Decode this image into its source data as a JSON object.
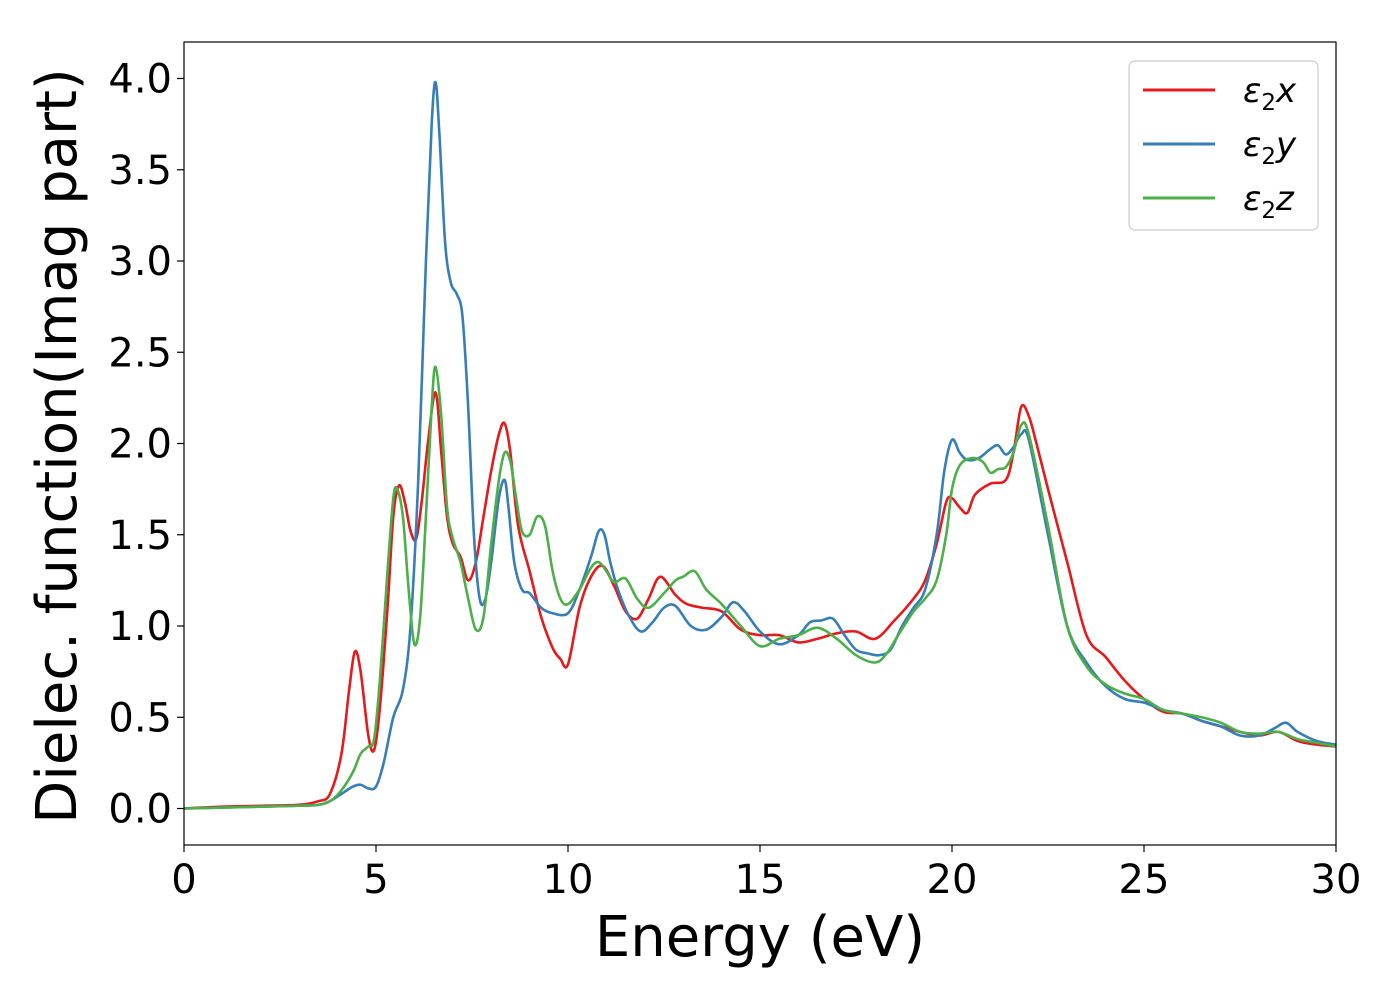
{
  "chart_data": {
    "type": "line",
    "xlabel": "Energy (eV)",
    "ylabel": "Dielec. function(Imag part)",
    "xlim": [
      0,
      30
    ],
    "ylim": [
      -0.2,
      4.2
    ],
    "xticks": [
      0,
      5,
      10,
      15,
      20,
      25,
      30
    ],
    "xtick_labels": [
      "0",
      "5",
      "10",
      "15",
      "20",
      "25",
      "30"
    ],
    "yticks": [
      0,
      0.5,
      1,
      1.5,
      2,
      2.5,
      3,
      3.5,
      4
    ],
    "ytick_labels": [
      "0.0",
      "0.5",
      "1.0",
      "1.5",
      "2.0",
      "2.5",
      "3.0",
      "3.5",
      "4.0"
    ],
    "grid": false,
    "legend_position": "top-right",
    "series": [
      {
        "name": "ε₂x",
        "legend_symbol": "ε",
        "legend_sub": "2",
        "legend_var": "x",
        "color": "#e41a1c",
        "x": [
          0,
          1,
          2,
          3,
          3.5,
          3.8,
          4.1,
          4.3,
          4.45,
          4.6,
          4.8,
          4.95,
          5.1,
          5.3,
          5.45,
          5.6,
          5.75,
          5.9,
          6.05,
          6.2,
          6.35,
          6.55,
          6.7,
          6.85,
          7.0,
          7.2,
          7.4,
          7.6,
          7.8,
          8.0,
          8.2,
          8.35,
          8.5,
          8.7,
          9.0,
          9.3,
          9.6,
          9.8,
          10.0,
          10.3,
          10.6,
          10.9,
          11.2,
          11.5,
          11.8,
          12.1,
          12.4,
          12.8,
          13.1,
          13.5,
          14.0,
          14.5,
          15.0,
          15.5,
          16.0,
          16.5,
          17.0,
          17.5,
          18.0,
          18.5,
          19.0,
          19.3,
          19.6,
          19.85,
          20.0,
          20.2,
          20.4,
          20.6,
          21.0,
          21.4,
          21.6,
          21.8,
          22.0,
          22.2,
          22.5,
          23.0,
          23.5,
          24.0,
          24.5,
          25.0,
          25.5,
          26.0,
          26.5,
          27.0,
          27.5,
          28.0,
          28.5,
          29.0,
          29.5,
          30.0
        ],
        "y": [
          0.0,
          0.01,
          0.015,
          0.02,
          0.04,
          0.08,
          0.3,
          0.65,
          0.86,
          0.75,
          0.4,
          0.32,
          0.55,
          1.1,
          1.6,
          1.77,
          1.68,
          1.52,
          1.48,
          1.7,
          2.0,
          2.28,
          1.95,
          1.6,
          1.45,
          1.38,
          1.25,
          1.35,
          1.6,
          1.85,
          2.05,
          2.11,
          1.95,
          1.55,
          1.3,
          1.05,
          0.88,
          0.82,
          0.79,
          1.1,
          1.27,
          1.33,
          1.22,
          1.08,
          1.04,
          1.15,
          1.27,
          1.17,
          1.12,
          1.1,
          1.08,
          0.98,
          0.95,
          0.95,
          0.91,
          0.93,
          0.96,
          0.97,
          0.93,
          1.03,
          1.15,
          1.25,
          1.45,
          1.68,
          1.7,
          1.65,
          1.62,
          1.72,
          1.78,
          1.8,
          1.95,
          2.2,
          2.15,
          2.0,
          1.75,
          1.35,
          0.95,
          0.83,
          0.7,
          0.6,
          0.53,
          0.52,
          0.48,
          0.45,
          0.42,
          0.4,
          0.42,
          0.37,
          0.35,
          0.34
        ]
      },
      {
        "name": "ε₂y",
        "legend_symbol": "ε",
        "legend_sub": "2",
        "legend_var": "y",
        "color": "#377eb8",
        "x": [
          0,
          1,
          2,
          3,
          3.5,
          3.8,
          4.1,
          4.4,
          4.6,
          4.8,
          5.0,
          5.2,
          5.45,
          5.7,
          5.9,
          6.1,
          6.3,
          6.45,
          6.55,
          6.65,
          6.8,
          6.95,
          7.1,
          7.25,
          7.4,
          7.55,
          7.7,
          7.85,
          8.0,
          8.2,
          8.35,
          8.45,
          8.6,
          8.8,
          9.0,
          9.3,
          9.6,
          10.0,
          10.3,
          10.6,
          10.8,
          10.95,
          11.1,
          11.3,
          11.6,
          11.9,
          12.2,
          12.5,
          12.8,
          13.2,
          13.6,
          14.0,
          14.3,
          14.6,
          15.0,
          15.5,
          16.0,
          16.3,
          16.6,
          16.9,
          17.2,
          17.5,
          17.8,
          18.1,
          18.4,
          18.7,
          19.0,
          19.3,
          19.6,
          19.8,
          20.0,
          20.2,
          20.4,
          20.7,
          21.0,
          21.2,
          21.4,
          21.6,
          21.8,
          22.0,
          22.5,
          23.0,
          23.5,
          24.0,
          24.5,
          25.0,
          25.5,
          26.0,
          26.5,
          27.0,
          27.5,
          28.0,
          28.4,
          28.7,
          29.0,
          29.5,
          30.0
        ],
        "y": [
          0.0,
          0.005,
          0.01,
          0.015,
          0.02,
          0.04,
          0.08,
          0.12,
          0.13,
          0.11,
          0.12,
          0.25,
          0.5,
          0.65,
          1.0,
          1.8,
          3.0,
          3.75,
          3.98,
          3.7,
          3.1,
          2.88,
          2.82,
          2.7,
          2.2,
          1.5,
          1.15,
          1.15,
          1.35,
          1.7,
          1.8,
          1.65,
          1.35,
          1.2,
          1.18,
          1.1,
          1.07,
          1.07,
          1.2,
          1.38,
          1.52,
          1.5,
          1.35,
          1.2,
          1.05,
          0.97,
          1.02,
          1.1,
          1.11,
          1.0,
          0.98,
          1.05,
          1.13,
          1.08,
          0.97,
          0.9,
          0.95,
          1.02,
          1.03,
          1.04,
          0.95,
          0.87,
          0.85,
          0.84,
          0.87,
          1.0,
          1.1,
          1.2,
          1.5,
          1.85,
          2.02,
          1.95,
          1.91,
          1.92,
          1.97,
          1.99,
          1.94,
          1.98,
          2.05,
          2.02,
          1.5,
          1.0,
          0.8,
          0.67,
          0.6,
          0.58,
          0.54,
          0.52,
          0.48,
          0.45,
          0.4,
          0.4,
          0.44,
          0.47,
          0.42,
          0.37,
          0.35
        ]
      },
      {
        "name": "ε₂z",
        "legend_symbol": "ε",
        "legend_sub": "2",
        "legend_var": "z",
        "color": "#4daf4a",
        "x": [
          0,
          1,
          2,
          3,
          3.5,
          3.8,
          4.1,
          4.4,
          4.6,
          4.8,
          4.95,
          5.1,
          5.3,
          5.45,
          5.55,
          5.7,
          5.85,
          6.0,
          6.15,
          6.3,
          6.45,
          6.55,
          6.7,
          6.85,
          7.0,
          7.2,
          7.4,
          7.6,
          7.8,
          8.0,
          8.2,
          8.35,
          8.5,
          8.65,
          8.8,
          9.0,
          9.2,
          9.4,
          9.6,
          9.8,
          10.0,
          10.3,
          10.6,
          10.8,
          11.0,
          11.2,
          11.5,
          11.8,
          12.1,
          12.5,
          12.8,
          13.0,
          13.3,
          13.6,
          14.0,
          14.5,
          15.0,
          15.5,
          16.0,
          16.5,
          17.0,
          17.5,
          18.0,
          18.3,
          18.6,
          19.0,
          19.3,
          19.6,
          19.85,
          20.0,
          20.2,
          20.5,
          20.8,
          21.0,
          21.2,
          21.4,
          21.6,
          21.8,
          22.0,
          22.5,
          23.0,
          23.5,
          24.0,
          24.5,
          25.0,
          25.5,
          26.0,
          26.5,
          27.0,
          27.5,
          28.0,
          28.5,
          29.0,
          29.5,
          30.0
        ],
        "y": [
          0.0,
          0.005,
          0.01,
          0.015,
          0.02,
          0.04,
          0.1,
          0.2,
          0.3,
          0.34,
          0.38,
          0.7,
          1.3,
          1.7,
          1.75,
          1.6,
          1.2,
          0.9,
          1.05,
          1.6,
          2.2,
          2.42,
          2.15,
          1.65,
          1.48,
          1.35,
          1.15,
          0.98,
          1.05,
          1.45,
          1.8,
          1.95,
          1.9,
          1.7,
          1.52,
          1.5,
          1.6,
          1.55,
          1.3,
          1.15,
          1.12,
          1.2,
          1.32,
          1.35,
          1.3,
          1.24,
          1.26,
          1.15,
          1.1,
          1.18,
          1.25,
          1.27,
          1.3,
          1.2,
          1.12,
          1.0,
          0.89,
          0.93,
          0.95,
          0.99,
          0.93,
          0.84,
          0.8,
          0.85,
          0.95,
          1.08,
          1.15,
          1.25,
          1.5,
          1.75,
          1.88,
          1.92,
          1.9,
          1.84,
          1.86,
          1.87,
          1.95,
          2.1,
          2.05,
          1.55,
          1.0,
          0.78,
          0.68,
          0.63,
          0.6,
          0.54,
          0.52,
          0.5,
          0.47,
          0.42,
          0.41,
          0.42,
          0.38,
          0.36,
          0.34
        ]
      }
    ]
  }
}
